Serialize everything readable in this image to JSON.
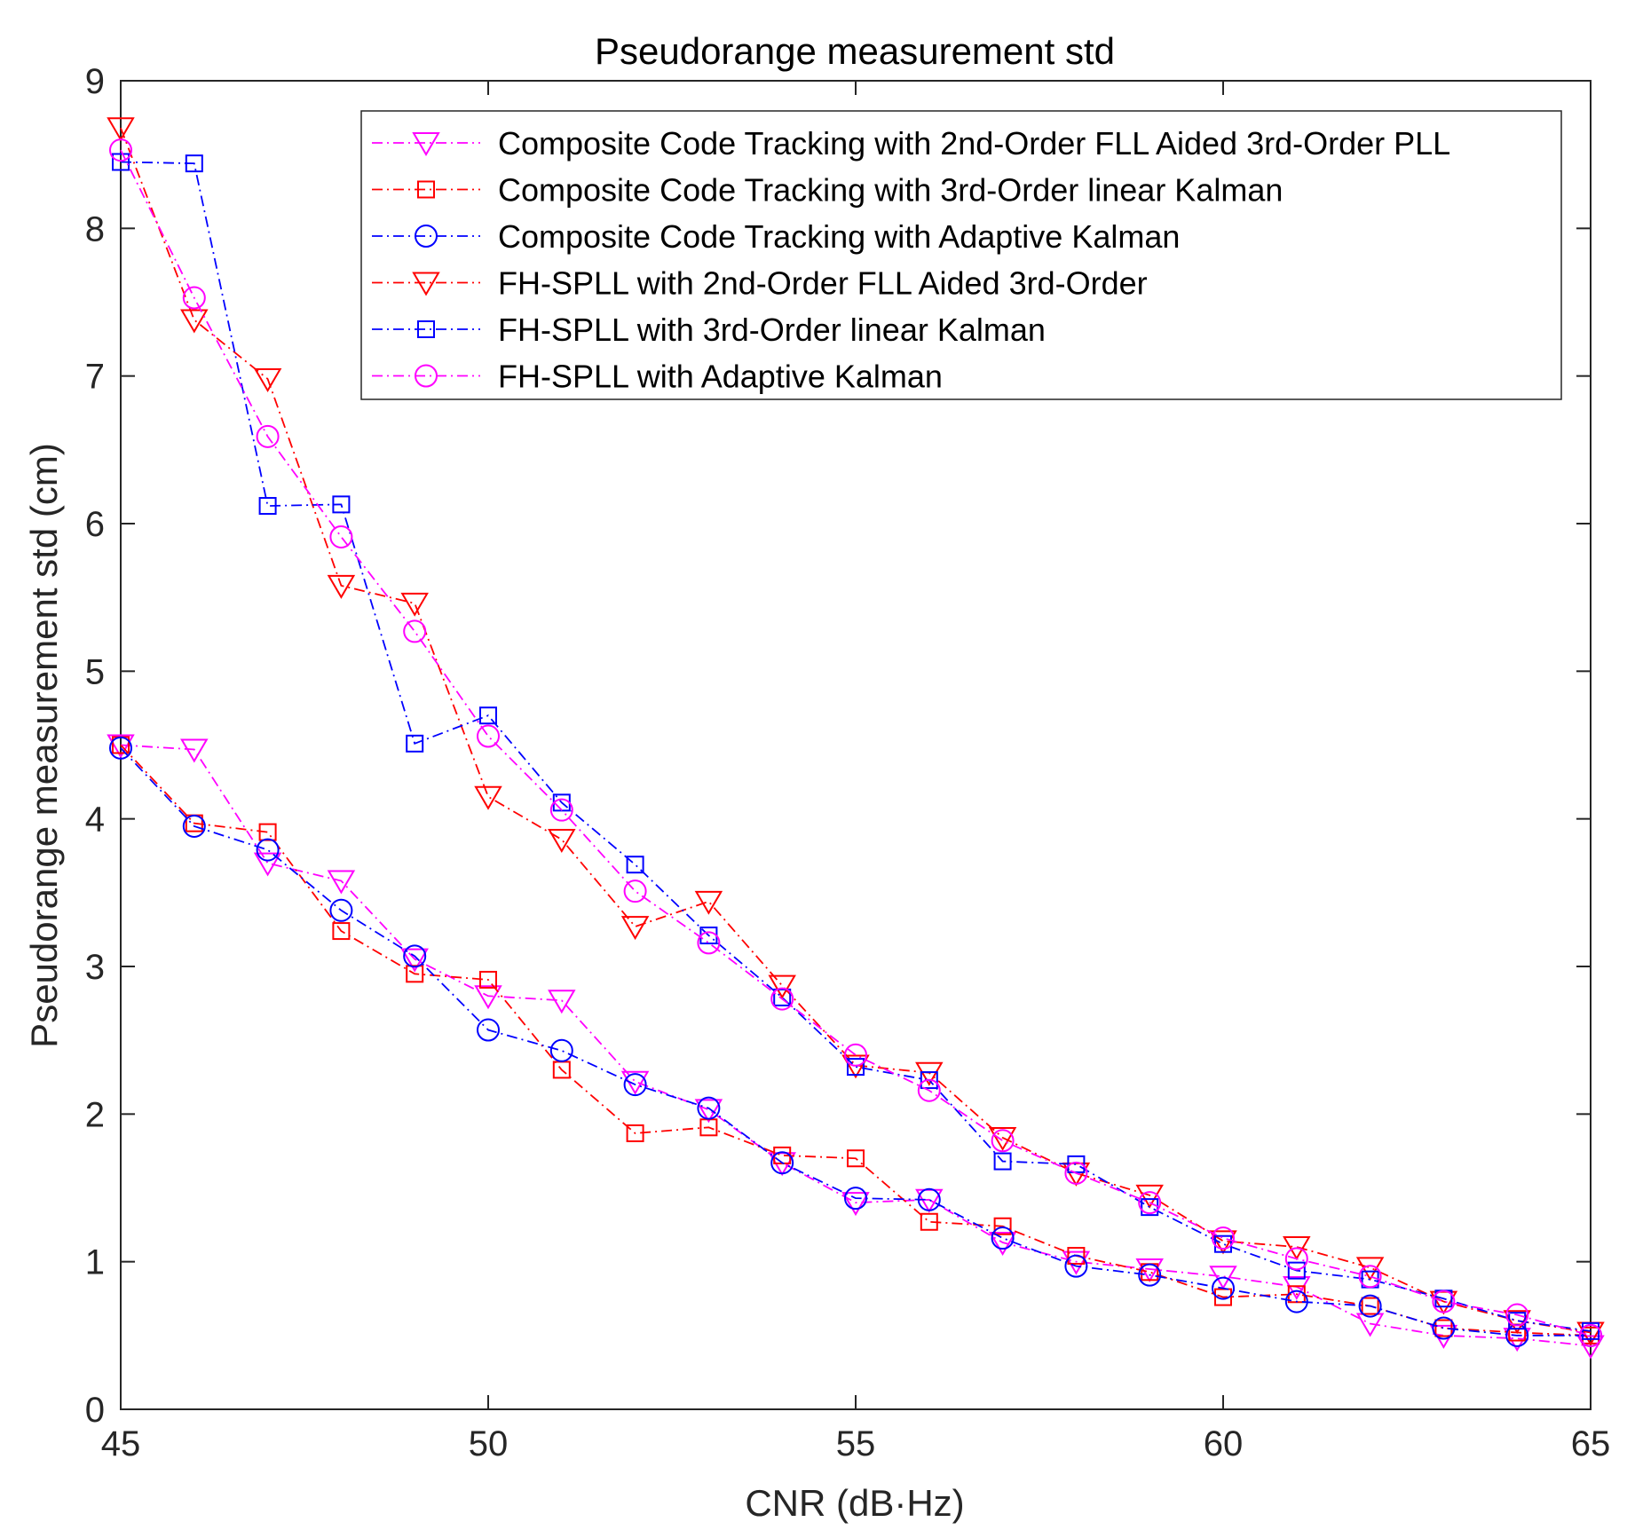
{
  "chart_data": {
    "type": "line",
    "title": "Pseudorange measurement std",
    "xlabel": "CNR (dB·Hz)",
    "ylabel": "Pseudorange measurement std (cm)",
    "xlim": [
      45,
      65
    ],
    "ylim": [
      0,
      9
    ],
    "xticks": [
      45,
      50,
      55,
      60,
      65
    ],
    "yticks": [
      0,
      1,
      2,
      3,
      4,
      5,
      6,
      7,
      8,
      9
    ],
    "grid": false,
    "legend_position": "top-right",
    "x": [
      45,
      46,
      47,
      48,
      49,
      50,
      51,
      52,
      53,
      54,
      55,
      56,
      57,
      58,
      59,
      60,
      61,
      62,
      63,
      64,
      65
    ],
    "series": [
      {
        "name": "Composite Code Tracking with 2nd-Order FLL Aided 3rd-Order PLL",
        "color": "#ff00ff",
        "marker": "triangle-down",
        "values": [
          4.5,
          4.47,
          3.7,
          3.58,
          3.05,
          2.8,
          2.77,
          2.22,
          2.03,
          1.67,
          1.4,
          1.42,
          1.13,
          1.0,
          0.95,
          0.9,
          0.83,
          0.58,
          0.5,
          0.48,
          0.43
        ]
      },
      {
        "name": "Composite Code Tracking with 3rd-Order linear Kalman",
        "color": "#ff0000",
        "marker": "square",
        "values": [
          4.5,
          3.97,
          3.91,
          3.24,
          2.95,
          2.91,
          2.3,
          1.87,
          1.91,
          1.72,
          1.7,
          1.27,
          1.24,
          1.04,
          0.93,
          0.76,
          0.78,
          0.7,
          0.55,
          0.52,
          0.5
        ]
      },
      {
        "name": "Composite Code Tracking with Adaptive Kalman",
        "color": "#0000ff",
        "marker": "circle",
        "values": [
          4.48,
          3.95,
          3.79,
          3.38,
          3.07,
          2.57,
          2.43,
          2.2,
          2.04,
          1.67,
          1.43,
          1.42,
          1.16,
          0.97,
          0.91,
          0.82,
          0.73,
          0.7,
          0.55,
          0.5,
          0.5
        ]
      },
      {
        "name": "FH-SPLL with 2nd-Order FLL Aided 3rd-Order",
        "color": "#ff0000",
        "marker": "triangle-down",
        "values": [
          8.68,
          7.38,
          6.98,
          5.58,
          5.46,
          4.15,
          3.86,
          3.27,
          3.44,
          2.87,
          2.33,
          2.28,
          1.84,
          1.6,
          1.45,
          1.14,
          1.1,
          0.96,
          0.73,
          0.6,
          0.52
        ]
      },
      {
        "name": "FH-SPLL with 3rd-Order linear Kalman",
        "color": "#0000ff",
        "marker": "square",
        "values": [
          8.45,
          8.44,
          6.12,
          6.13,
          4.51,
          4.7,
          4.11,
          3.69,
          3.21,
          2.79,
          2.32,
          2.23,
          1.68,
          1.66,
          1.37,
          1.12,
          0.94,
          0.88,
          0.75,
          0.6,
          0.53
        ]
      },
      {
        "name": "FH-SPLL with Adaptive Kalman",
        "color": "#ff00ff",
        "marker": "circle",
        "values": [
          8.53,
          7.53,
          6.59,
          5.91,
          5.27,
          4.56,
          4.06,
          3.51,
          3.16,
          2.78,
          2.4,
          2.16,
          1.82,
          1.6,
          1.4,
          1.16,
          1.02,
          0.9,
          0.73,
          0.64,
          0.5
        ]
      }
    ]
  }
}
